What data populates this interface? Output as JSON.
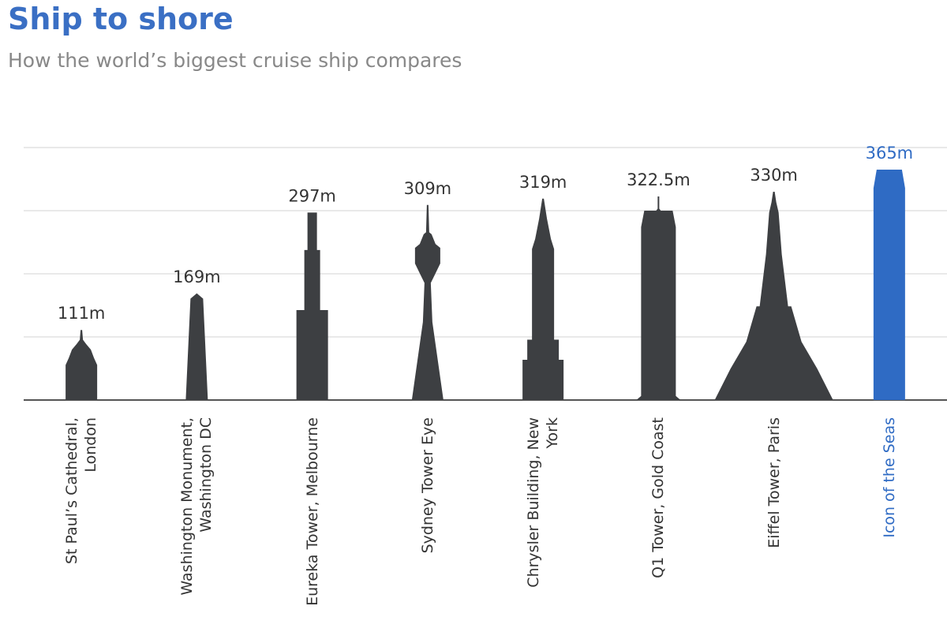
{
  "chart_data": {
    "type": "pictogram-bar",
    "title": "Ship to shore",
    "subtitle": "How the world’s biggest cruise ship compares",
    "categories": [
      "St Paul’s Cathedral, London",
      "Washington Monument, Washington DC",
      "Eureka Tower, Melbourne",
      "Sydney Tower Eye",
      "Chrysler Building, New York",
      "Q1 Tower, Gold Coast",
      "Eiffel Tower, Paris",
      "Icon of the Seas"
    ],
    "values": [
      111,
      169,
      297,
      309,
      319,
      322.5,
      330,
      365
    ],
    "value_labels": [
      "111m",
      "169m",
      "297m",
      "309m",
      "319m",
      "322.5m",
      "330m",
      "365m"
    ],
    "colors": [
      "#3d3f42",
      "#3d3f42",
      "#3d3f42",
      "#3d3f42",
      "#3d3f42",
      "#3d3f42",
      "#3d3f42",
      "#2f6bc4"
    ],
    "ylim": [
      0,
      400
    ],
    "yticks": [
      0,
      100,
      200,
      300,
      400
    ],
    "grid": true
  }
}
